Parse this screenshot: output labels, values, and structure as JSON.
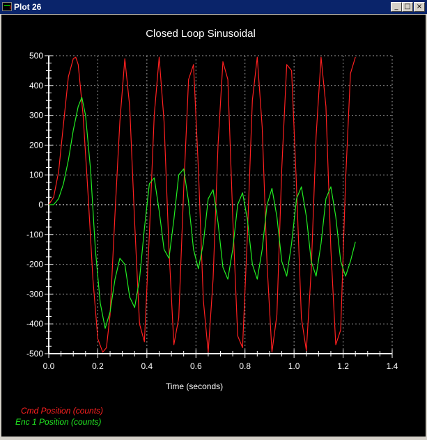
{
  "window": {
    "title": "Plot 26",
    "minimize_label": "_",
    "maximize_label": "□",
    "close_label": "×"
  },
  "chart_data": {
    "type": "line",
    "title": "Closed Loop Sinusoidal",
    "xlabel": "Time (seconds)",
    "ylabel": "",
    "xlim": [
      0.0,
      1.4
    ],
    "ylim": [
      -500,
      500
    ],
    "xticks": [
      "0.0",
      "0.2",
      "0.4",
      "0.6",
      "0.8",
      "1.0",
      "1.2",
      "1.4"
    ],
    "yticks": [
      "500",
      "400",
      "300",
      "200",
      "100",
      "0",
      "-100",
      "-200",
      "-300",
      "-400",
      "-500"
    ],
    "grid": true,
    "background": "#000000",
    "legend_position": "bottom-left",
    "series": [
      {
        "name": "Cmd Position (counts)",
        "color": "#ff2020",
        "x": [
          0.0,
          0.02,
          0.04,
          0.06,
          0.08,
          0.1,
          0.11,
          0.12,
          0.14,
          0.16,
          0.18,
          0.2,
          0.22,
          0.235,
          0.25,
          0.27,
          0.29,
          0.31,
          0.33,
          0.35,
          0.37,
          0.39,
          0.41,
          0.43,
          0.45,
          0.47,
          0.49,
          0.51,
          0.53,
          0.55,
          0.57,
          0.59,
          0.61,
          0.63,
          0.65,
          0.67,
          0.69,
          0.71,
          0.73,
          0.75,
          0.77,
          0.79,
          0.81,
          0.83,
          0.85,
          0.87,
          0.89,
          0.91,
          0.93,
          0.95,
          0.97,
          0.99,
          1.01,
          1.03,
          1.05,
          1.07,
          1.09,
          1.11,
          1.13,
          1.15,
          1.17,
          1.19,
          1.21,
          1.23,
          1.25
        ],
        "y": [
          0,
          25,
          110,
          270,
          430,
          490,
          495,
          470,
          300,
          40,
          -250,
          -450,
          -495,
          -480,
          -370,
          -30,
          280,
          490,
          330,
          -60,
          -400,
          -460,
          -100,
          300,
          495,
          280,
          -150,
          -470,
          -380,
          50,
          420,
          470,
          120,
          -320,
          -495,
          -250,
          200,
          480,
          420,
          -40,
          -440,
          -480,
          -100,
          350,
          495,
          260,
          -200,
          -495,
          -370,
          120,
          470,
          450,
          60,
          -380,
          -490,
          -220,
          230,
          495,
          330,
          -150,
          -470,
          -420,
          80,
          440,
          495
        ]
      },
      {
        "name": "Enc 1 Position (counts)",
        "color": "#22ee22",
        "x": [
          0.0,
          0.02,
          0.04,
          0.06,
          0.08,
          0.1,
          0.12,
          0.135,
          0.15,
          0.17,
          0.19,
          0.21,
          0.23,
          0.25,
          0.27,
          0.29,
          0.31,
          0.33,
          0.35,
          0.37,
          0.39,
          0.41,
          0.43,
          0.45,
          0.47,
          0.49,
          0.51,
          0.53,
          0.55,
          0.57,
          0.59,
          0.61,
          0.63,
          0.65,
          0.67,
          0.69,
          0.71,
          0.73,
          0.75,
          0.77,
          0.79,
          0.81,
          0.83,
          0.85,
          0.87,
          0.89,
          0.91,
          0.93,
          0.95,
          0.97,
          0.99,
          1.01,
          1.03,
          1.05,
          1.07,
          1.09,
          1.11,
          1.13,
          1.15,
          1.17,
          1.19,
          1.21,
          1.23,
          1.25
        ],
        "y": [
          0,
          0,
          20,
          70,
          150,
          250,
          330,
          360,
          300,
          120,
          -150,
          -330,
          -415,
          -360,
          -250,
          -180,
          -200,
          -310,
          -345,
          -250,
          -80,
          70,
          90,
          -20,
          -150,
          -180,
          -50,
          100,
          120,
          10,
          -150,
          -215,
          -130,
          20,
          50,
          -60,
          -210,
          -250,
          -150,
          0,
          40,
          -50,
          -200,
          -250,
          -150,
          0,
          55,
          -40,
          -190,
          -240,
          -130,
          20,
          60,
          -40,
          -190,
          -240,
          -130,
          20,
          60,
          -40,
          -190,
          -240,
          -190,
          -125
        ]
      }
    ]
  }
}
